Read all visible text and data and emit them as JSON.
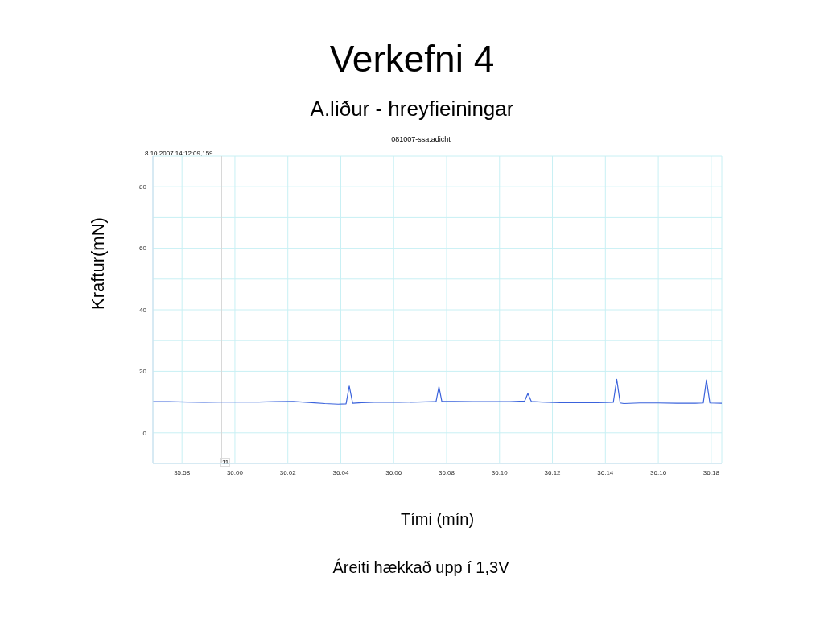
{
  "chart_data": {
    "type": "line",
    "title": "Verkefni 4",
    "subtitle": "A.liður - hreyfieiningar",
    "xlabel": "Tími (mín)",
    "ylabel": "Kraftur(mN)",
    "annotations": [
      "8.10.2007 14:12:09,159",
      "081007-ssa.adicht",
      "Áreiti hækkað upp í 1,3V",
      "11"
    ],
    "ref_lines": [
      {
        "axis": "x",
        "value": 2159.5,
        "color": "#d8d8d8"
      }
    ],
    "xlim": [
      2156.9,
      2178.4
    ],
    "xticks": [
      {
        "value": 2158,
        "label": "35:58"
      },
      {
        "value": 2160,
        "label": "36:00"
      },
      {
        "value": 2162,
        "label": "36:02"
      },
      {
        "value": 2164,
        "label": "36:04"
      },
      {
        "value": 2166,
        "label": "36:06"
      },
      {
        "value": 2168,
        "label": "36:08"
      },
      {
        "value": 2170,
        "label": "36:10"
      },
      {
        "value": 2172,
        "label": "36:12"
      },
      {
        "value": 2174,
        "label": "36:14"
      },
      {
        "value": 2176,
        "label": "36:16"
      },
      {
        "value": 2178,
        "label": "36:18"
      }
    ],
    "ylim": [
      -10,
      90
    ],
    "yticks": [
      0,
      {
        "value": 10,
        "label": null
      },
      20,
      {
        "value": 30,
        "label": null
      },
      40,
      {
        "value": 50,
        "label": null
      },
      60,
      {
        "value": 70,
        "label": null
      },
      80
    ],
    "grid": true,
    "marker": "none",
    "line_style": "solid",
    "series": [
      {
        "color": "#3a62dc",
        "x": [
          2156.9,
          2157.5,
          2158.2,
          2158.8,
          2159.5,
          2160.2,
          2160.9,
          2161.5,
          2162.2,
          2162.9,
          2163.4,
          2163.9,
          2164.2,
          2164.32,
          2164.45,
          2164.8,
          2165.5,
          2166.2,
          2166.9,
          2167.5,
          2167.6,
          2167.71,
          2167.82,
          2168.3,
          2169.0,
          2169.7,
          2170.4,
          2170.95,
          2171.07,
          2171.2,
          2171.6,
          2172.3,
          2173.0,
          2173.7,
          2174.3,
          2174.43,
          2174.56,
          2174.7,
          2175.3,
          2176.0,
          2176.7,
          2177.4,
          2177.7,
          2177.82,
          2177.95,
          2178.4
        ],
        "values": [
          10.1,
          10.1,
          10.0,
          9.9,
          10.0,
          10.0,
          10.0,
          10.1,
          10.2,
          9.8,
          9.5,
          9.3,
          9.4,
          15.2,
          9.6,
          9.8,
          10.0,
          9.9,
          10.0,
          10.1,
          10.1,
          15.0,
          10.2,
          10.2,
          10.1,
          10.1,
          10.1,
          10.3,
          12.8,
          10.2,
          10.0,
          9.8,
          9.8,
          9.8,
          9.9,
          17.4,
          9.7,
          9.5,
          9.7,
          9.7,
          9.6,
          9.6,
          9.7,
          17.2,
          9.7,
          9.6
        ]
      }
    ]
  }
}
